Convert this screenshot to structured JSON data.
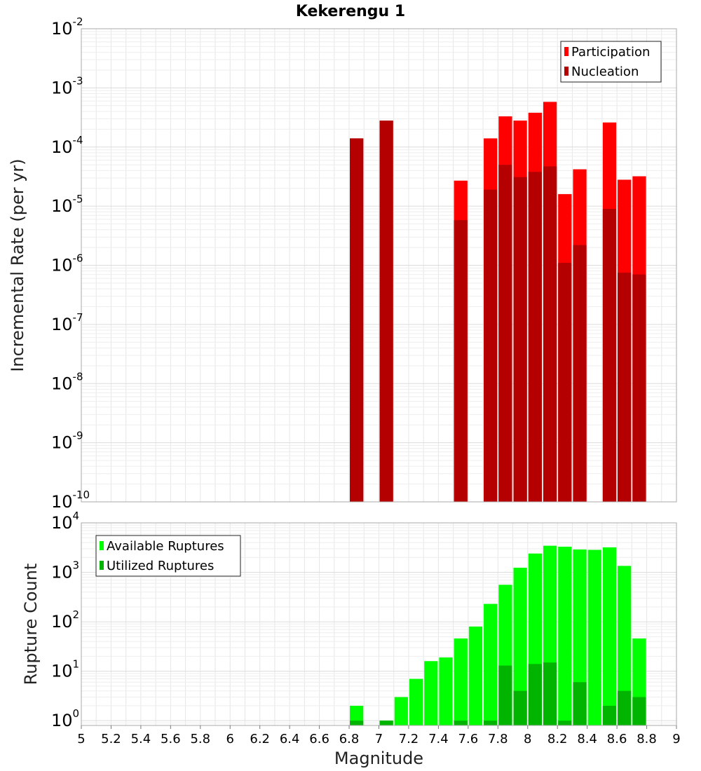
{
  "chart_data": [
    {
      "type": "bar",
      "title": "Kekerengu 1",
      "ylabel": "Incremental Rate (per yr)",
      "yscale": "log",
      "ylim": [
        1e-10,
        0.01
      ],
      "xlim": [
        5,
        9
      ],
      "bar_width": 0.1,
      "legend_position": "top-right",
      "grid": true,
      "yticks": [
        {
          "base": "10",
          "exp": "-10"
        },
        {
          "base": "10",
          "exp": "-9"
        },
        {
          "base": "10",
          "exp": "-8"
        },
        {
          "base": "10",
          "exp": "-7"
        },
        {
          "base": "10",
          "exp": "-6"
        },
        {
          "base": "10",
          "exp": "-5"
        },
        {
          "base": "10",
          "exp": "-4"
        },
        {
          "base": "10",
          "exp": "-3"
        },
        {
          "base": "10",
          "exp": "-2"
        }
      ],
      "series": [
        {
          "name": "Participation",
          "color": "#ff0000",
          "x": [
            6.85,
            7.05,
            7.55,
            7.75,
            7.85,
            7.95,
            8.05,
            8.15,
            8.25,
            8.35,
            8.55,
            8.65,
            8.75
          ],
          "values": [
            0.00014,
            0.00028,
            2.7e-05,
            0.00014,
            0.00033,
            0.00028,
            0.00038,
            0.00058,
            1.6e-05,
            4.2e-05,
            0.00026,
            2.8e-05,
            3.2e-05
          ]
        },
        {
          "name": "Nucleation",
          "color": "#b40000",
          "x": [
            6.85,
            7.05,
            7.55,
            7.75,
            7.85,
            7.95,
            8.05,
            8.15,
            8.25,
            8.35,
            8.55,
            8.65,
            8.75
          ],
          "values": [
            0.00014,
            0.00028,
            5.8e-06,
            1.9e-05,
            5e-05,
            3.1e-05,
            3.8e-05,
            4.7e-05,
            1.1e-06,
            2.2e-06,
            9e-06,
            7.5e-07,
            7e-07
          ]
        }
      ]
    },
    {
      "type": "bar",
      "ylabel": "Rupture Count",
      "xlabel": "Magnitude",
      "yscale": "log",
      "ylim": [
        0.8,
        10000
      ],
      "xlim": [
        5,
        9
      ],
      "bar_width": 0.1,
      "legend_position": "top-left",
      "grid": true,
      "yticks": [
        {
          "base": "10",
          "exp": "0"
        },
        {
          "base": "10",
          "exp": "1"
        },
        {
          "base": "10",
          "exp": "2"
        },
        {
          "base": "10",
          "exp": "3"
        },
        {
          "base": "10",
          "exp": "4"
        }
      ],
      "xticks": [
        "5",
        "5.2",
        "5.4",
        "5.6",
        "5.8",
        "6",
        "6.2",
        "6.4",
        "6.6",
        "6.8",
        "7",
        "7.2",
        "7.4",
        "7.6",
        "7.8",
        "8",
        "8.2",
        "8.4",
        "8.6",
        "8.8",
        "9"
      ],
      "series": [
        {
          "name": "Available Ruptures",
          "color": "#00ff00",
          "x": [
            6.85,
            7.05,
            7.15,
            7.25,
            7.35,
            7.45,
            7.55,
            7.65,
            7.75,
            7.85,
            7.95,
            8.05,
            8.15,
            8.25,
            8.35,
            8.45,
            8.55,
            8.65,
            8.75
          ],
          "values": [
            2,
            1,
            3,
            7,
            16,
            19,
            46,
            80,
            230,
            560,
            1240,
            2400,
            3450,
            3300,
            2900,
            2850,
            3200,
            1350,
            46
          ]
        },
        {
          "name": "Utilized Ruptures",
          "color": "#00b400",
          "x": [
            6.85,
            7.05,
            7.55,
            7.75,
            7.85,
            7.95,
            8.05,
            8.15,
            8.25,
            8.35,
            8.55,
            8.65,
            8.75
          ],
          "values": [
            1,
            1,
            1,
            1,
            13,
            4,
            14,
            15,
            1,
            6,
            2,
            4,
            3
          ]
        }
      ]
    }
  ]
}
